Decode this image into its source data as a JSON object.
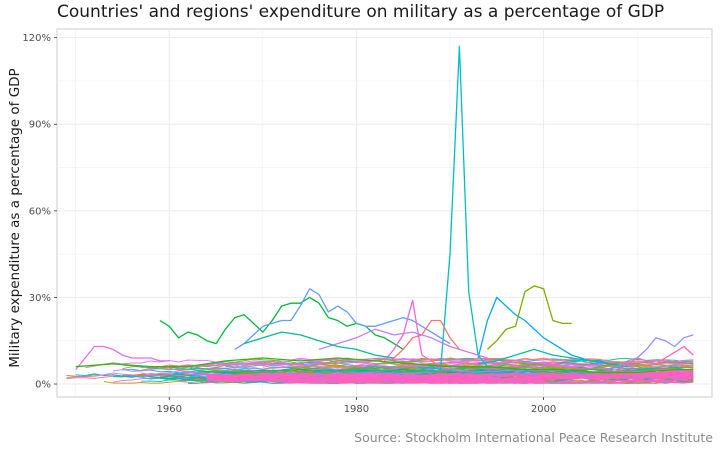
{
  "chart_data": {
    "type": "line",
    "title": "Countries' and regions' expenditure on military as a percentage of GDP",
    "ylabel": "Military expenditure as a percentage of GDP",
    "xlabel": "",
    "caption": "Source: Stockholm International Peace Research Institute",
    "xlim": [
      1948,
      2018
    ],
    "ylim": [
      -4.5,
      123
    ],
    "x_ticks": [
      1960,
      1980,
      2000
    ],
    "y_ticks": [
      0,
      30,
      60,
      90,
      120
    ],
    "y_tick_labels": [
      "0%",
      "30%",
      "60%",
      "90%",
      "120%"
    ],
    "grid": true,
    "legend": "none",
    "highlighted_series": [
      {
        "color": "#00BFC4",
        "x": [
          1987,
          1988,
          1989,
          1990,
          1991,
          1992,
          1993,
          1994
        ],
        "values": [
          5,
          6,
          5,
          45,
          117,
          32,
          10,
          6
        ]
      },
      {
        "color": "#00A9FF",
        "x": [
          1993,
          1994,
          1995,
          1996,
          1997,
          1998,
          1999,
          2000,
          2001,
          2002,
          2003,
          2004,
          2005,
          2006,
          2007
        ],
        "values": [
          9,
          22,
          30,
          27,
          24,
          22,
          19,
          16,
          14,
          12,
          10,
          9,
          8,
          8,
          7
        ]
      },
      {
        "color": "#7CAE00",
        "x": [
          1994,
          1995,
          1996,
          1997,
          1998,
          1999,
          2000,
          2001,
          2002,
          2003
        ],
        "values": [
          12,
          15,
          19,
          20,
          32,
          34,
          33,
          22,
          21,
          21
        ]
      },
      {
        "color": "#00BA38",
        "x": [
          1959,
          1960,
          1961,
          1962,
          1963,
          1964,
          1965,
          1966,
          1967,
          1968,
          1969,
          1970,
          1971,
          1972,
          1973,
          1974,
          1975,
          1976,
          1977,
          1978,
          1979,
          1980,
          1981,
          1982,
          1983,
          1984,
          1985
        ],
        "values": [
          22,
          20,
          16,
          18,
          17,
          15,
          14,
          19,
          23,
          24,
          21,
          18,
          22,
          27,
          28,
          28,
          30,
          28,
          23,
          22,
          20,
          21,
          20,
          17,
          16,
          14,
          12
        ]
      },
      {
        "color": "#619CFF",
        "x": [
          1967,
          1968,
          1969,
          1970,
          1971,
          1972,
          1973,
          1974,
          1975,
          1976,
          1977,
          1978,
          1979,
          1980,
          1981,
          1982,
          1983,
          1984,
          1985,
          1986,
          1987,
          1988,
          1989,
          1990
        ],
        "values": [
          12,
          14,
          17,
          20,
          21,
          22,
          22,
          27,
          33,
          31,
          25,
          27,
          25,
          21,
          20,
          20,
          21,
          22,
          23,
          22,
          20,
          18,
          16,
          14
        ]
      },
      {
        "color": "#F564E3",
        "x": [
          1983,
          1984,
          1985,
          1986,
          1987,
          1988,
          1989,
          1990
        ],
        "values": [
          8,
          12,
          17,
          29,
          10,
          8,
          6,
          5
        ]
      },
      {
        "color": "#F8766D",
        "x": [
          1984,
          1985,
          1986,
          1987,
          1988,
          1989,
          1990,
          1991
        ],
        "values": [
          9,
          12,
          16,
          17,
          22,
          22,
          16,
          12
        ]
      },
      {
        "color": "#C77CFF",
        "x": [
          1976,
          1978,
          1980,
          1982,
          1984,
          1986,
          1988,
          1990,
          1992,
          1994
        ],
        "values": [
          12,
          14,
          16,
          19,
          17,
          18,
          16,
          13,
          11,
          9
        ]
      },
      {
        "color": "#E76BF3",
        "x": [
          1950,
          1951,
          1952,
          1953,
          1954,
          1955,
          1956,
          1957,
          1958,
          1959,
          1960
        ],
        "values": [
          5,
          9,
          13,
          13,
          12,
          10,
          9,
          9,
          9,
          8,
          8
        ]
      },
      {
        "color": "#00C08B",
        "x": [
          1968,
          1970,
          1972,
          1974,
          1976,
          1978,
          1980,
          1982,
          1984
        ],
        "values": [
          14,
          16,
          18,
          17,
          15,
          13,
          12,
          10,
          9
        ]
      },
      {
        "color": "#00C1A3",
        "x": [
          1993,
          1995,
          1997,
          1999,
          2001,
          2003,
          2005,
          2007,
          2009
        ],
        "values": [
          7,
          8,
          10,
          12,
          10,
          9,
          8,
          7,
          6
        ]
      },
      {
        "color": "#9590FF",
        "x": [
          2008,
          2009,
          2010,
          2011,
          2012,
          2013,
          2014,
          2015,
          2016
        ],
        "values": [
          6,
          8,
          9,
          12,
          16,
          15,
          13,
          16,
          17
        ]
      },
      {
        "color": "#FF64B0",
        "x": [
          2008,
          2009,
          2010,
          2011,
          2012,
          2013,
          2014,
          2015,
          2016
        ],
        "values": [
          5,
          7,
          9,
          8,
          7,
          9,
          11,
          13,
          10
        ]
      },
      {
        "color": "#39B600",
        "x": [
          1950,
          1954,
          1958,
          1962,
          1966,
          1970,
          1974,
          1978,
          1982,
          1986,
          1990,
          1994,
          1998,
          2002,
          2006,
          2010,
          2014,
          2016
        ],
        "values": [
          6,
          7,
          6,
          6,
          8,
          9,
          8,
          9,
          8,
          7,
          6,
          6,
          5,
          5,
          4,
          4,
          5,
          5
        ]
      }
    ]
  }
}
